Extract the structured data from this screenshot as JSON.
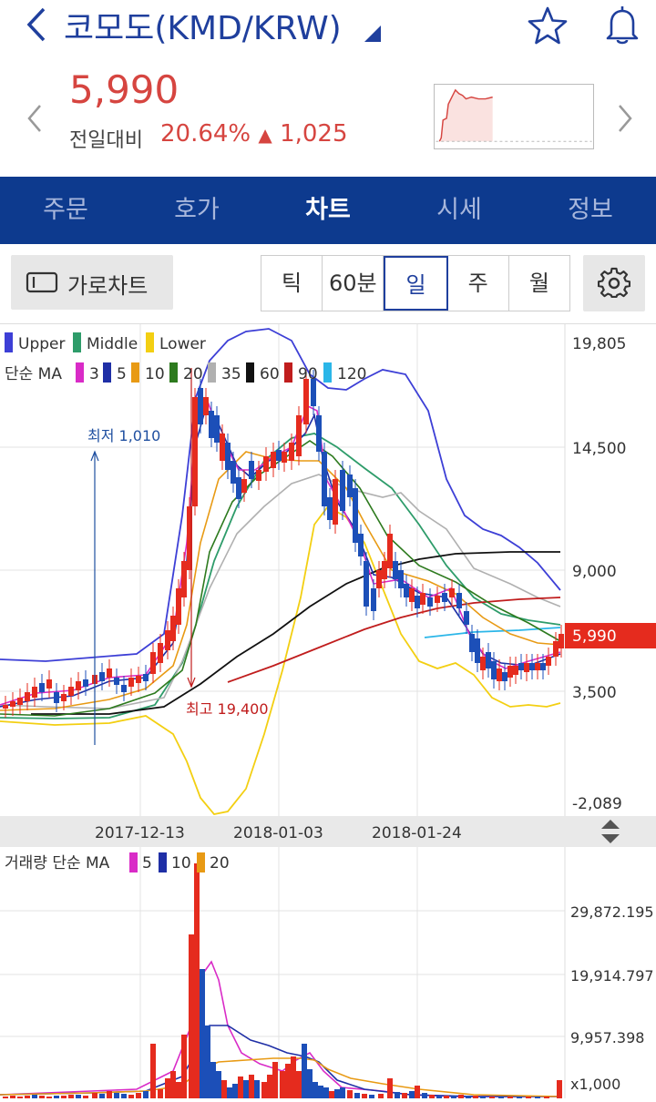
{
  "header": {
    "title": "코모도(KMD/KRW)",
    "price": "5,990",
    "prev_label": "전일대비",
    "change_pct": "20.64%",
    "change_arrow": "▲",
    "change_abs": "1,025"
  },
  "tabs": [
    {
      "label": "주문"
    },
    {
      "label": "호가"
    },
    {
      "label": "차트"
    },
    {
      "label": "시세"
    },
    {
      "label": "정보"
    }
  ],
  "toolbar": {
    "landscape_label": "가로차트",
    "periods": [
      {
        "label": "틱"
      },
      {
        "label": "60분"
      },
      {
        "label": "일"
      },
      {
        "label": "주"
      },
      {
        "label": "월"
      }
    ],
    "active_period": "일"
  },
  "price_chart": {
    "legend_bb": [
      "Upper",
      "Middle",
      "Lower"
    ],
    "legend_ma_title": "단순 MA",
    "legend_ma": [
      "3",
      "5",
      "10",
      "20",
      "35",
      "60",
      "90",
      "120"
    ],
    "y_ticks": [
      "19,805",
      "14,500",
      "9,000",
      "3,500",
      "-2,089"
    ],
    "current_price_tag": "5,990",
    "annotation_low": "최저 1,010",
    "annotation_high": "최고 19,400",
    "x_ticks": [
      "2017-12-13",
      "2018-01-03",
      "2018-01-24"
    ]
  },
  "volume_chart": {
    "legend_title": "거래량 단순 MA",
    "legend_ma": [
      "5",
      "10",
      "20"
    ],
    "y_ticks": [
      "29,872.195",
      "19,914.797",
      "9,957.398",
      "x1,000"
    ]
  },
  "colors": {
    "brand_blue": "#0d3a8e",
    "up_red": "#e52b1e",
    "down_blue": "#1c4fb8",
    "price_red": "#d64540",
    "bb_upper": "#3d3fd6",
    "bb_middle": "#2e9c6a",
    "bb_lower": "#f3cf12",
    "ma3": "#d92bc7",
    "ma5": "#1f2fa6",
    "ma10": "#e89a14",
    "ma20": "#2d7a1e",
    "ma35": "#b0b0b0",
    "ma60": "#111111",
    "ma90": "#c01d1d",
    "ma120": "#2bb6e8"
  }
}
